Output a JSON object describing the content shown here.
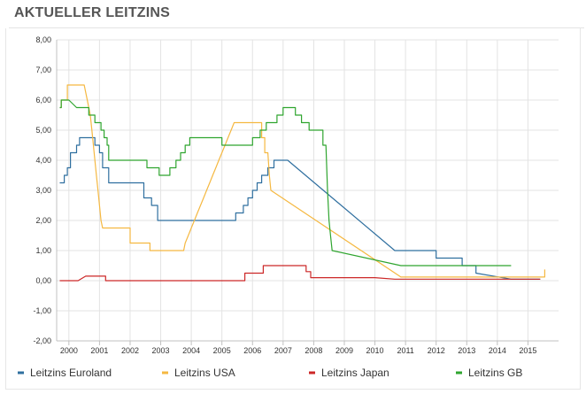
{
  "header": {
    "title": "AKTUELLER LEITZINS"
  },
  "chart_data": {
    "type": "line",
    "title": "AKTUELLER LEITZINS",
    "xlabel": "",
    "ylabel": "",
    "xlim": [
      1999.6,
      2016.0
    ],
    "ylim": [
      -2,
      8
    ],
    "y_ticks": [
      8,
      7,
      6,
      5,
      4,
      3,
      2,
      1,
      0,
      -1,
      -2
    ],
    "y_tick_labels": [
      "8,00",
      "7,00",
      "6,00",
      "5,00",
      "4,00",
      "3,00",
      "2,00",
      "1,00",
      "0,00",
      "-1,00",
      "-2,00"
    ],
    "x_ticks": [
      2000,
      2001,
      2002,
      2003,
      2004,
      2005,
      2006,
      2007,
      2008,
      2009,
      2010,
      2011,
      2012,
      2013,
      2014,
      2015
    ],
    "x_tick_labels": [
      "2000",
      "2001",
      "2002",
      "2003",
      "2004",
      "2005",
      "2006",
      "2007",
      "2008",
      "2009",
      "2010",
      "2011",
      "2012",
      "2013",
      "2014",
      "2015"
    ],
    "grid": true,
    "legend_position": "bottom",
    "series": [
      {
        "name": "Leitzins Euroland",
        "color": "#2f6f9f",
        "points": [
          [
            1999.7,
            3.25
          ],
          [
            1999.85,
            3.25
          ],
          [
            1999.85,
            3.5
          ],
          [
            1999.95,
            3.5
          ],
          [
            1999.95,
            3.75
          ],
          [
            2000.05,
            3.75
          ],
          [
            2000.05,
            4.25
          ],
          [
            2000.25,
            4.25
          ],
          [
            2000.25,
            4.5
          ],
          [
            2000.35,
            4.5
          ],
          [
            2000.35,
            4.75
          ],
          [
            2000.85,
            4.75
          ],
          [
            2000.85,
            4.5
          ],
          [
            2001.0,
            4.5
          ],
          [
            2001.0,
            4.25
          ],
          [
            2001.1,
            4.25
          ],
          [
            2001.1,
            3.75
          ],
          [
            2001.3,
            3.75
          ],
          [
            2001.3,
            3.25
          ],
          [
            2002.45,
            3.25
          ],
          [
            2002.45,
            2.75
          ],
          [
            2002.7,
            2.75
          ],
          [
            2002.7,
            2.5
          ],
          [
            2002.9,
            2.5
          ],
          [
            2002.9,
            2.0
          ],
          [
            2005.45,
            2.0
          ],
          [
            2005.45,
            2.25
          ],
          [
            2005.7,
            2.25
          ],
          [
            2005.7,
            2.5
          ],
          [
            2005.85,
            2.5
          ],
          [
            2005.85,
            2.75
          ],
          [
            2006.0,
            2.75
          ],
          [
            2006.0,
            3.0
          ],
          [
            2006.15,
            3.0
          ],
          [
            2006.15,
            3.25
          ],
          [
            2006.3,
            3.25
          ],
          [
            2006.3,
            3.5
          ],
          [
            2006.5,
            3.5
          ],
          [
            2006.5,
            3.75
          ],
          [
            2006.7,
            3.75
          ],
          [
            2006.7,
            4.0
          ],
          [
            2007.15,
            4.0
          ],
          [
            2010.65,
            1.0
          ],
          [
            2012.0,
            1.0
          ],
          [
            2012.0,
            0.75
          ],
          [
            2012.85,
            0.75
          ],
          [
            2012.85,
            0.5
          ],
          [
            2013.3,
            0.5
          ],
          [
            2013.3,
            0.25
          ],
          [
            2014.45,
            0.05
          ],
          [
            2015.4,
            0.05
          ]
        ]
      },
      {
        "name": "Leitzins USA",
        "color": "#f5b841",
        "points": [
          [
            1999.7,
            5.75
          ],
          [
            1999.75,
            5.75
          ],
          [
            1999.75,
            6.0
          ],
          [
            1999.95,
            6.0
          ],
          [
            1999.95,
            6.5
          ],
          [
            2000.5,
            6.5
          ],
          [
            2000.6,
            6.0
          ],
          [
            2000.7,
            5.5
          ],
          [
            2000.75,
            5.0
          ],
          [
            2000.8,
            4.5
          ],
          [
            2000.85,
            4.0
          ],
          [
            2000.9,
            3.5
          ],
          [
            2000.95,
            3.0
          ],
          [
            2001.0,
            2.5
          ],
          [
            2001.05,
            2.0
          ],
          [
            2001.1,
            1.75
          ],
          [
            2002.0,
            1.75
          ],
          [
            2002.0,
            1.25
          ],
          [
            2002.65,
            1.25
          ],
          [
            2002.65,
            1.0
          ],
          [
            2003.75,
            1.0
          ],
          [
            2003.8,
            1.25
          ],
          [
            2003.9,
            1.5
          ],
          [
            2004.0,
            1.75
          ],
          [
            2004.1,
            2.0
          ],
          [
            2004.2,
            2.25
          ],
          [
            2004.3,
            2.5
          ],
          [
            2004.4,
            2.75
          ],
          [
            2004.5,
            3.0
          ],
          [
            2004.6,
            3.25
          ],
          [
            2004.7,
            3.5
          ],
          [
            2004.8,
            3.75
          ],
          [
            2004.9,
            4.0
          ],
          [
            2005.0,
            4.25
          ],
          [
            2005.1,
            4.5
          ],
          [
            2005.2,
            4.75
          ],
          [
            2005.3,
            5.0
          ],
          [
            2005.4,
            5.25
          ],
          [
            2006.3,
            5.25
          ],
          [
            2006.3,
            4.75
          ],
          [
            2006.4,
            4.75
          ],
          [
            2006.4,
            4.25
          ],
          [
            2006.5,
            4.25
          ],
          [
            2006.55,
            3.5
          ],
          [
            2006.6,
            3.0
          ],
          [
            2010.85,
            0.12
          ],
          [
            2015.55,
            0.12
          ],
          [
            2015.55,
            0.37
          ]
        ]
      },
      {
        "name": "Leitzins Japan",
        "color": "#cc2727",
        "points": [
          [
            1999.7,
            0.0
          ],
          [
            2000.3,
            0.0
          ],
          [
            2000.55,
            0.15
          ],
          [
            2001.2,
            0.15
          ],
          [
            2001.2,
            0.0
          ],
          [
            2005.75,
            0.0
          ],
          [
            2005.75,
            0.25
          ],
          [
            2006.35,
            0.25
          ],
          [
            2006.35,
            0.5
          ],
          [
            2007.75,
            0.5
          ],
          [
            2007.75,
            0.3
          ],
          [
            2007.9,
            0.3
          ],
          [
            2007.9,
            0.1
          ],
          [
            2010.0,
            0.1
          ],
          [
            2010.65,
            0.05
          ],
          [
            2015.4,
            0.05
          ]
        ]
      },
      {
        "name": "Leitzins GB",
        "color": "#2fa52f",
        "points": [
          [
            1999.7,
            5.75
          ],
          [
            1999.75,
            5.75
          ],
          [
            1999.75,
            6.0
          ],
          [
            2000.0,
            6.0
          ],
          [
            2000.25,
            5.75
          ],
          [
            2000.65,
            5.75
          ],
          [
            2000.65,
            5.5
          ],
          [
            2000.85,
            5.5
          ],
          [
            2000.85,
            5.25
          ],
          [
            2001.05,
            5.25
          ],
          [
            2001.05,
            5.0
          ],
          [
            2001.15,
            5.0
          ],
          [
            2001.15,
            4.75
          ],
          [
            2001.25,
            4.75
          ],
          [
            2001.25,
            4.5
          ],
          [
            2001.3,
            4.5
          ],
          [
            2001.3,
            4.0
          ],
          [
            2002.55,
            4.0
          ],
          [
            2002.55,
            3.75
          ],
          [
            2002.95,
            3.75
          ],
          [
            2002.95,
            3.5
          ],
          [
            2003.3,
            3.5
          ],
          [
            2003.3,
            3.75
          ],
          [
            2003.5,
            3.75
          ],
          [
            2003.5,
            4.0
          ],
          [
            2003.65,
            4.0
          ],
          [
            2003.65,
            4.25
          ],
          [
            2003.8,
            4.25
          ],
          [
            2003.8,
            4.5
          ],
          [
            2003.95,
            4.5
          ],
          [
            2003.95,
            4.75
          ],
          [
            2005.0,
            4.75
          ],
          [
            2005.0,
            4.5
          ],
          [
            2006.0,
            4.5
          ],
          [
            2006.0,
            4.75
          ],
          [
            2006.25,
            4.75
          ],
          [
            2006.25,
            5.0
          ],
          [
            2006.45,
            5.0
          ],
          [
            2006.45,
            5.25
          ],
          [
            2006.8,
            5.25
          ],
          [
            2006.8,
            5.5
          ],
          [
            2007.0,
            5.5
          ],
          [
            2007.0,
            5.75
          ],
          [
            2007.4,
            5.75
          ],
          [
            2007.4,
            5.5
          ],
          [
            2007.6,
            5.5
          ],
          [
            2007.6,
            5.25
          ],
          [
            2007.85,
            5.25
          ],
          [
            2007.85,
            5.0
          ],
          [
            2008.3,
            5.0
          ],
          [
            2008.3,
            4.5
          ],
          [
            2008.4,
            4.5
          ],
          [
            2008.45,
            3.0
          ],
          [
            2008.5,
            2.0
          ],
          [
            2008.55,
            1.5
          ],
          [
            2008.6,
            1.0
          ],
          [
            2010.85,
            0.5
          ],
          [
            2014.45,
            0.5
          ]
        ]
      }
    ]
  }
}
